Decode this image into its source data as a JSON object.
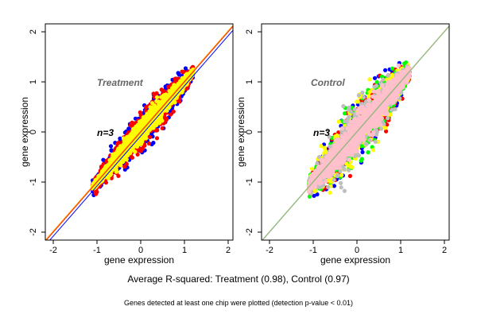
{
  "chart_data": [
    {
      "type": "scatter",
      "panel_title": "Treatment",
      "annotation": "n=3",
      "xlabel": "gene expression",
      "ylabel": "gene expression",
      "xlim": [
        -2.2,
        2.2
      ],
      "ylim": [
        -2.2,
        2.1
      ],
      "xticks": [
        -2,
        -1,
        0,
        1,
        2
      ],
      "yticks": [
        -2,
        -1,
        0,
        1,
        2
      ],
      "series_colors": [
        "#0000ff",
        "#ff0000",
        "#ffff00"
      ],
      "cloud": {
        "x_range": [
          -1.1,
          1.2
        ],
        "core_spread": 0.09,
        "outlier_spread": 0.18,
        "points_per_series": 900
      },
      "reference_lines": [
        {
          "color": "#0000ff",
          "intercept": -0.08,
          "slope": 1.0
        },
        {
          "color": "#ff0000",
          "intercept": 0.0,
          "slope": 1.0
        },
        {
          "color": "#ffa500",
          "intercept": 0.02,
          "slope": 1.0
        }
      ]
    },
    {
      "type": "scatter",
      "panel_title": "Control",
      "annotation": "n=3",
      "xlabel": "gene expression",
      "ylabel": "gene expression",
      "xlim": [
        -2.2,
        2.2
      ],
      "ylim": [
        -2.2,
        2.1
      ],
      "xticks": [
        -2,
        -1,
        0,
        1,
        2
      ],
      "yticks": [
        -2,
        -1,
        0,
        1,
        2
      ],
      "series_colors": [
        "#0000ff",
        "#ff0000",
        "#00ff00",
        "#ffff00",
        "#bebebe",
        "#ffc0cb"
      ],
      "cloud": {
        "x_range": [
          -1.1,
          1.2
        ],
        "core_spread": 0.16,
        "outlier_spread": 0.28,
        "points_per_series": 500
      },
      "reference_lines": [
        {
          "color": "#a0a0a0",
          "intercept": 0.0,
          "slope": 1.0
        },
        {
          "color": "#90c070",
          "intercept": 0.01,
          "slope": 1.0
        }
      ]
    }
  ],
  "footer": {
    "summary": "Average R-squared: Treatment (0.98), Control (0.97)",
    "note": "Genes detected at least one chip were plotted (detection p-value < 0.01)"
  }
}
